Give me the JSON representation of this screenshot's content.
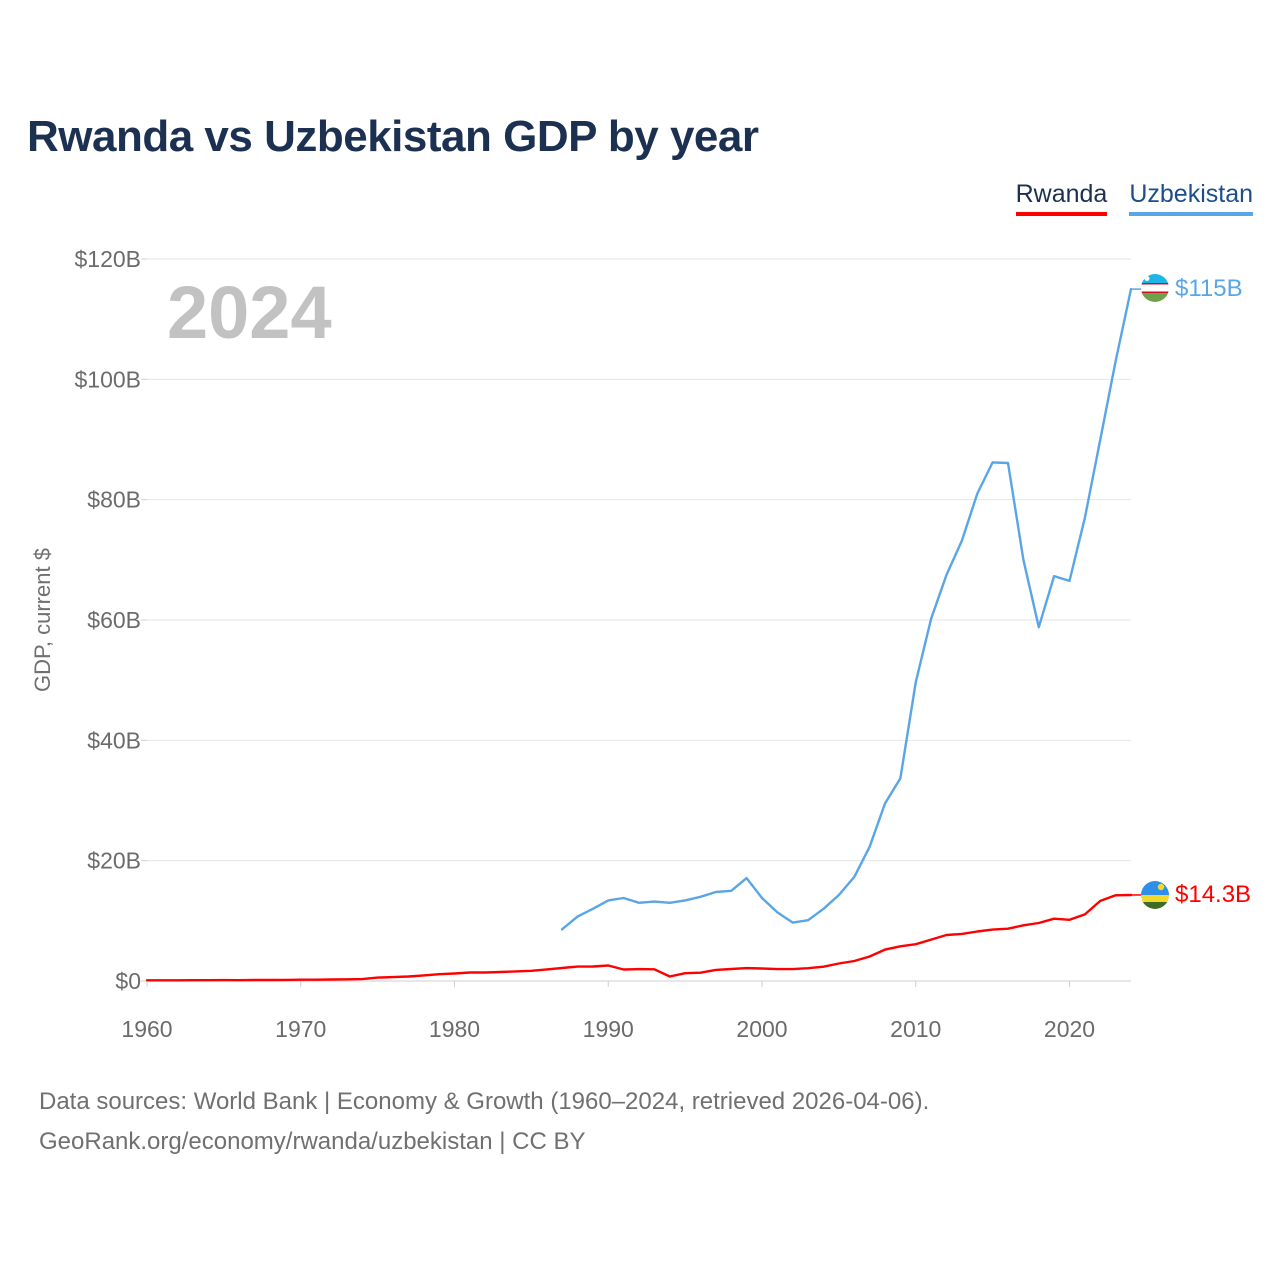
{
  "title": "Rwanda vs Uzbekistan GDP by year",
  "legend": [
    {
      "name": "Rwanda",
      "color": "#ff0000"
    },
    {
      "name": "Uzbekistan",
      "color": "#5aa5e6"
    }
  ],
  "year_watermark": "2024",
  "footer": {
    "line1": "Data sources: World Bank | Economy & Growth (1960–2024, retrieved 2026-04-06).",
    "line2": "GeoRank.org/economy/rwanda/uzbekistan | CC BY"
  },
  "chart_data": {
    "type": "line",
    "title": "Rwanda vs Uzbekistan GDP by year",
    "xlabel": "",
    "ylabel": "GDP, current $",
    "xlim": [
      1960,
      2024
    ],
    "ylim": [
      0,
      120
    ],
    "x_ticks": [
      1960,
      1970,
      1980,
      1990,
      2000,
      2010,
      2020
    ],
    "x_tick_labels": [
      "1960",
      "1970",
      "1980",
      "1990",
      "2000",
      "2010",
      "2020"
    ],
    "y_ticks": [
      0,
      20,
      40,
      60,
      80,
      100,
      120
    ],
    "y_tick_labels": [
      "$0",
      "$20B",
      "$40B",
      "$60B",
      "$80B",
      "$100B",
      "$120B"
    ],
    "grid": true,
    "legend_position": "top-right",
    "series": [
      {
        "name": "Rwanda",
        "color": "#ff0000",
        "end_label": "$14.3B",
        "x": [
          1960,
          1961,
          1962,
          1963,
          1964,
          1965,
          1966,
          1967,
          1968,
          1969,
          1970,
          1971,
          1972,
          1973,
          1974,
          1975,
          1976,
          1977,
          1978,
          1979,
          1980,
          1981,
          1982,
          1983,
          1984,
          1985,
          1986,
          1987,
          1988,
          1989,
          1990,
          1991,
          1992,
          1993,
          1994,
          1995,
          1996,
          1997,
          1998,
          1999,
          2000,
          2001,
          2002,
          2003,
          2004,
          2005,
          2006,
          2007,
          2008,
          2009,
          2010,
          2011,
          2012,
          2013,
          2014,
          2015,
          2016,
          2017,
          2018,
          2019,
          2020,
          2021,
          2022,
          2023,
          2024
        ],
        "values": [
          0.12,
          0.12,
          0.12,
          0.13,
          0.13,
          0.15,
          0.13,
          0.16,
          0.17,
          0.19,
          0.22,
          0.22,
          0.25,
          0.29,
          0.31,
          0.56,
          0.64,
          0.75,
          0.93,
          1.13,
          1.25,
          1.41,
          1.41,
          1.49,
          1.59,
          1.7,
          1.93,
          2.16,
          2.4,
          2.41,
          2.58,
          1.91,
          1.97,
          1.94,
          0.75,
          1.29,
          1.38,
          1.85,
          1.99,
          2.15,
          2.07,
          1.97,
          1.97,
          2.13,
          2.38,
          2.91,
          3.33,
          4.07,
          5.22,
          5.77,
          6.12,
          6.88,
          7.65,
          7.82,
          8.23,
          8.54,
          8.69,
          9.25,
          9.64,
          10.36,
          10.18,
          11.07,
          13.31,
          14.25,
          14.3
        ]
      },
      {
        "name": "Uzbekistan",
        "color": "#5aa5e6",
        "end_label": "$115B",
        "x": [
          1987,
          1988,
          1989,
          1990,
          1991,
          1992,
          1993,
          1994,
          1995,
          1996,
          1997,
          1998,
          1999,
          2000,
          2001,
          2002,
          2003,
          2004,
          2005,
          2006,
          2007,
          2008,
          2009,
          2010,
          2011,
          2012,
          2013,
          2014,
          2015,
          2016,
          2017,
          2018,
          2019,
          2020,
          2021,
          2022,
          2023,
          2024
        ],
        "values": [
          8.6,
          10.7,
          12.0,
          13.4,
          13.8,
          13.0,
          13.2,
          13.0,
          13.4,
          14.0,
          14.8,
          15.0,
          17.1,
          13.8,
          11.4,
          9.7,
          10.1,
          12.0,
          14.3,
          17.3,
          22.3,
          29.5,
          33.7,
          49.7,
          60.2,
          67.5,
          73.2,
          81.0,
          86.2,
          86.1,
          70.0,
          58.8,
          67.3,
          66.5,
          77.0,
          90.0,
          103.0,
          115.0
        ]
      }
    ]
  }
}
